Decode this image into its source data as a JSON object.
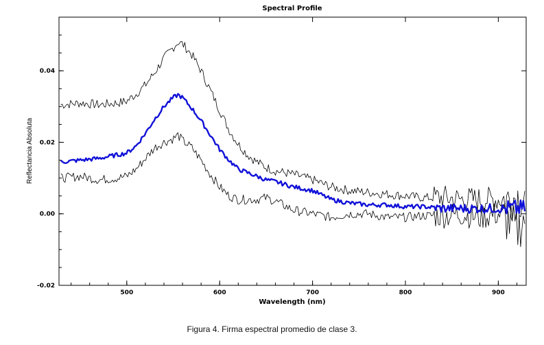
{
  "caption": "Figura 4. Firma espectral promedio de clase 3.",
  "chart_data": {
    "type": "line",
    "title": "Spectral Profile",
    "xlabel": "Wavelength (nm)",
    "ylabel": "Reflectancia Absoluta",
    "xlim": [
      427,
      930
    ],
    "ylim": [
      -0.02,
      0.055
    ],
    "xticks": [
      500,
      600,
      700,
      800,
      900
    ],
    "yticks": [
      -0.02,
      0.0,
      0.02,
      0.04
    ],
    "ytick_labels": [
      "-0.02",
      "0.00",
      "0.02",
      "0.04"
    ],
    "grid": false,
    "colors": {
      "mean": "#1010d8",
      "bounds": "#000000"
    },
    "series": [
      {
        "role": "upper",
        "x": [
          430,
          450,
          470,
          490,
          500,
          510,
          520,
          530,
          540,
          550,
          555,
          560,
          570,
          580,
          590,
          600,
          610,
          620,
          630,
          640,
          650,
          660,
          680,
          700,
          720,
          740,
          760,
          780,
          800,
          820,
          840,
          860,
          880,
          900,
          910,
          920,
          930
        ],
        "y": [
          0.0305,
          0.031,
          0.0305,
          0.031,
          0.0315,
          0.0335,
          0.036,
          0.0395,
          0.0435,
          0.0465,
          0.048,
          0.0475,
          0.0445,
          0.04,
          0.0345,
          0.029,
          0.0235,
          0.0195,
          0.0165,
          0.0145,
          0.013,
          0.012,
          0.011,
          0.0095,
          0.0075,
          0.0065,
          0.006,
          0.0055,
          0.005,
          0.0045,
          0.0045,
          0.004,
          0.004,
          0.004,
          0.004,
          0.005,
          0.004
        ]
      },
      {
        "role": "mean",
        "x": [
          430,
          450,
          470,
          490,
          500,
          510,
          520,
          530,
          540,
          550,
          555,
          560,
          570,
          580,
          590,
          600,
          610,
          620,
          630,
          640,
          650,
          660,
          680,
          700,
          720,
          740,
          760,
          780,
          800,
          820,
          840,
          860,
          880,
          900,
          910,
          920,
          930
        ],
        "y": [
          0.0145,
          0.015,
          0.0155,
          0.0165,
          0.017,
          0.019,
          0.0225,
          0.0265,
          0.03,
          0.0325,
          0.0333,
          0.0325,
          0.0295,
          0.026,
          0.022,
          0.018,
          0.015,
          0.0125,
          0.0115,
          0.0105,
          0.0095,
          0.009,
          0.0075,
          0.0065,
          0.004,
          0.003,
          0.0025,
          0.0025,
          0.002,
          0.002,
          0.0015,
          0.0015,
          0.0015,
          0.0015,
          0.0015,
          0.0015,
          0.0015
        ]
      },
      {
        "role": "lower",
        "x": [
          430,
          450,
          470,
          490,
          500,
          510,
          520,
          530,
          540,
          550,
          555,
          560,
          570,
          580,
          590,
          600,
          610,
          620,
          630,
          640,
          650,
          660,
          680,
          700,
          720,
          740,
          760,
          780,
          800,
          820,
          840,
          860,
          880,
          900,
          910,
          920,
          930
        ],
        "y": [
          0.01,
          0.0105,
          0.0095,
          0.01,
          0.0105,
          0.0125,
          0.0155,
          0.0185,
          0.02,
          0.021,
          0.022,
          0.0205,
          0.0185,
          0.015,
          0.011,
          0.0075,
          0.005,
          0.004,
          0.004,
          0.004,
          0.0045,
          0.0035,
          0.001,
          0.0,
          -0.001,
          0.0,
          0.0,
          -0.001,
          -0.001,
          -0.0005,
          -0.0005,
          0.0,
          -0.001,
          0.0,
          -0.002,
          -0.005,
          0.0
        ]
      }
    ]
  }
}
